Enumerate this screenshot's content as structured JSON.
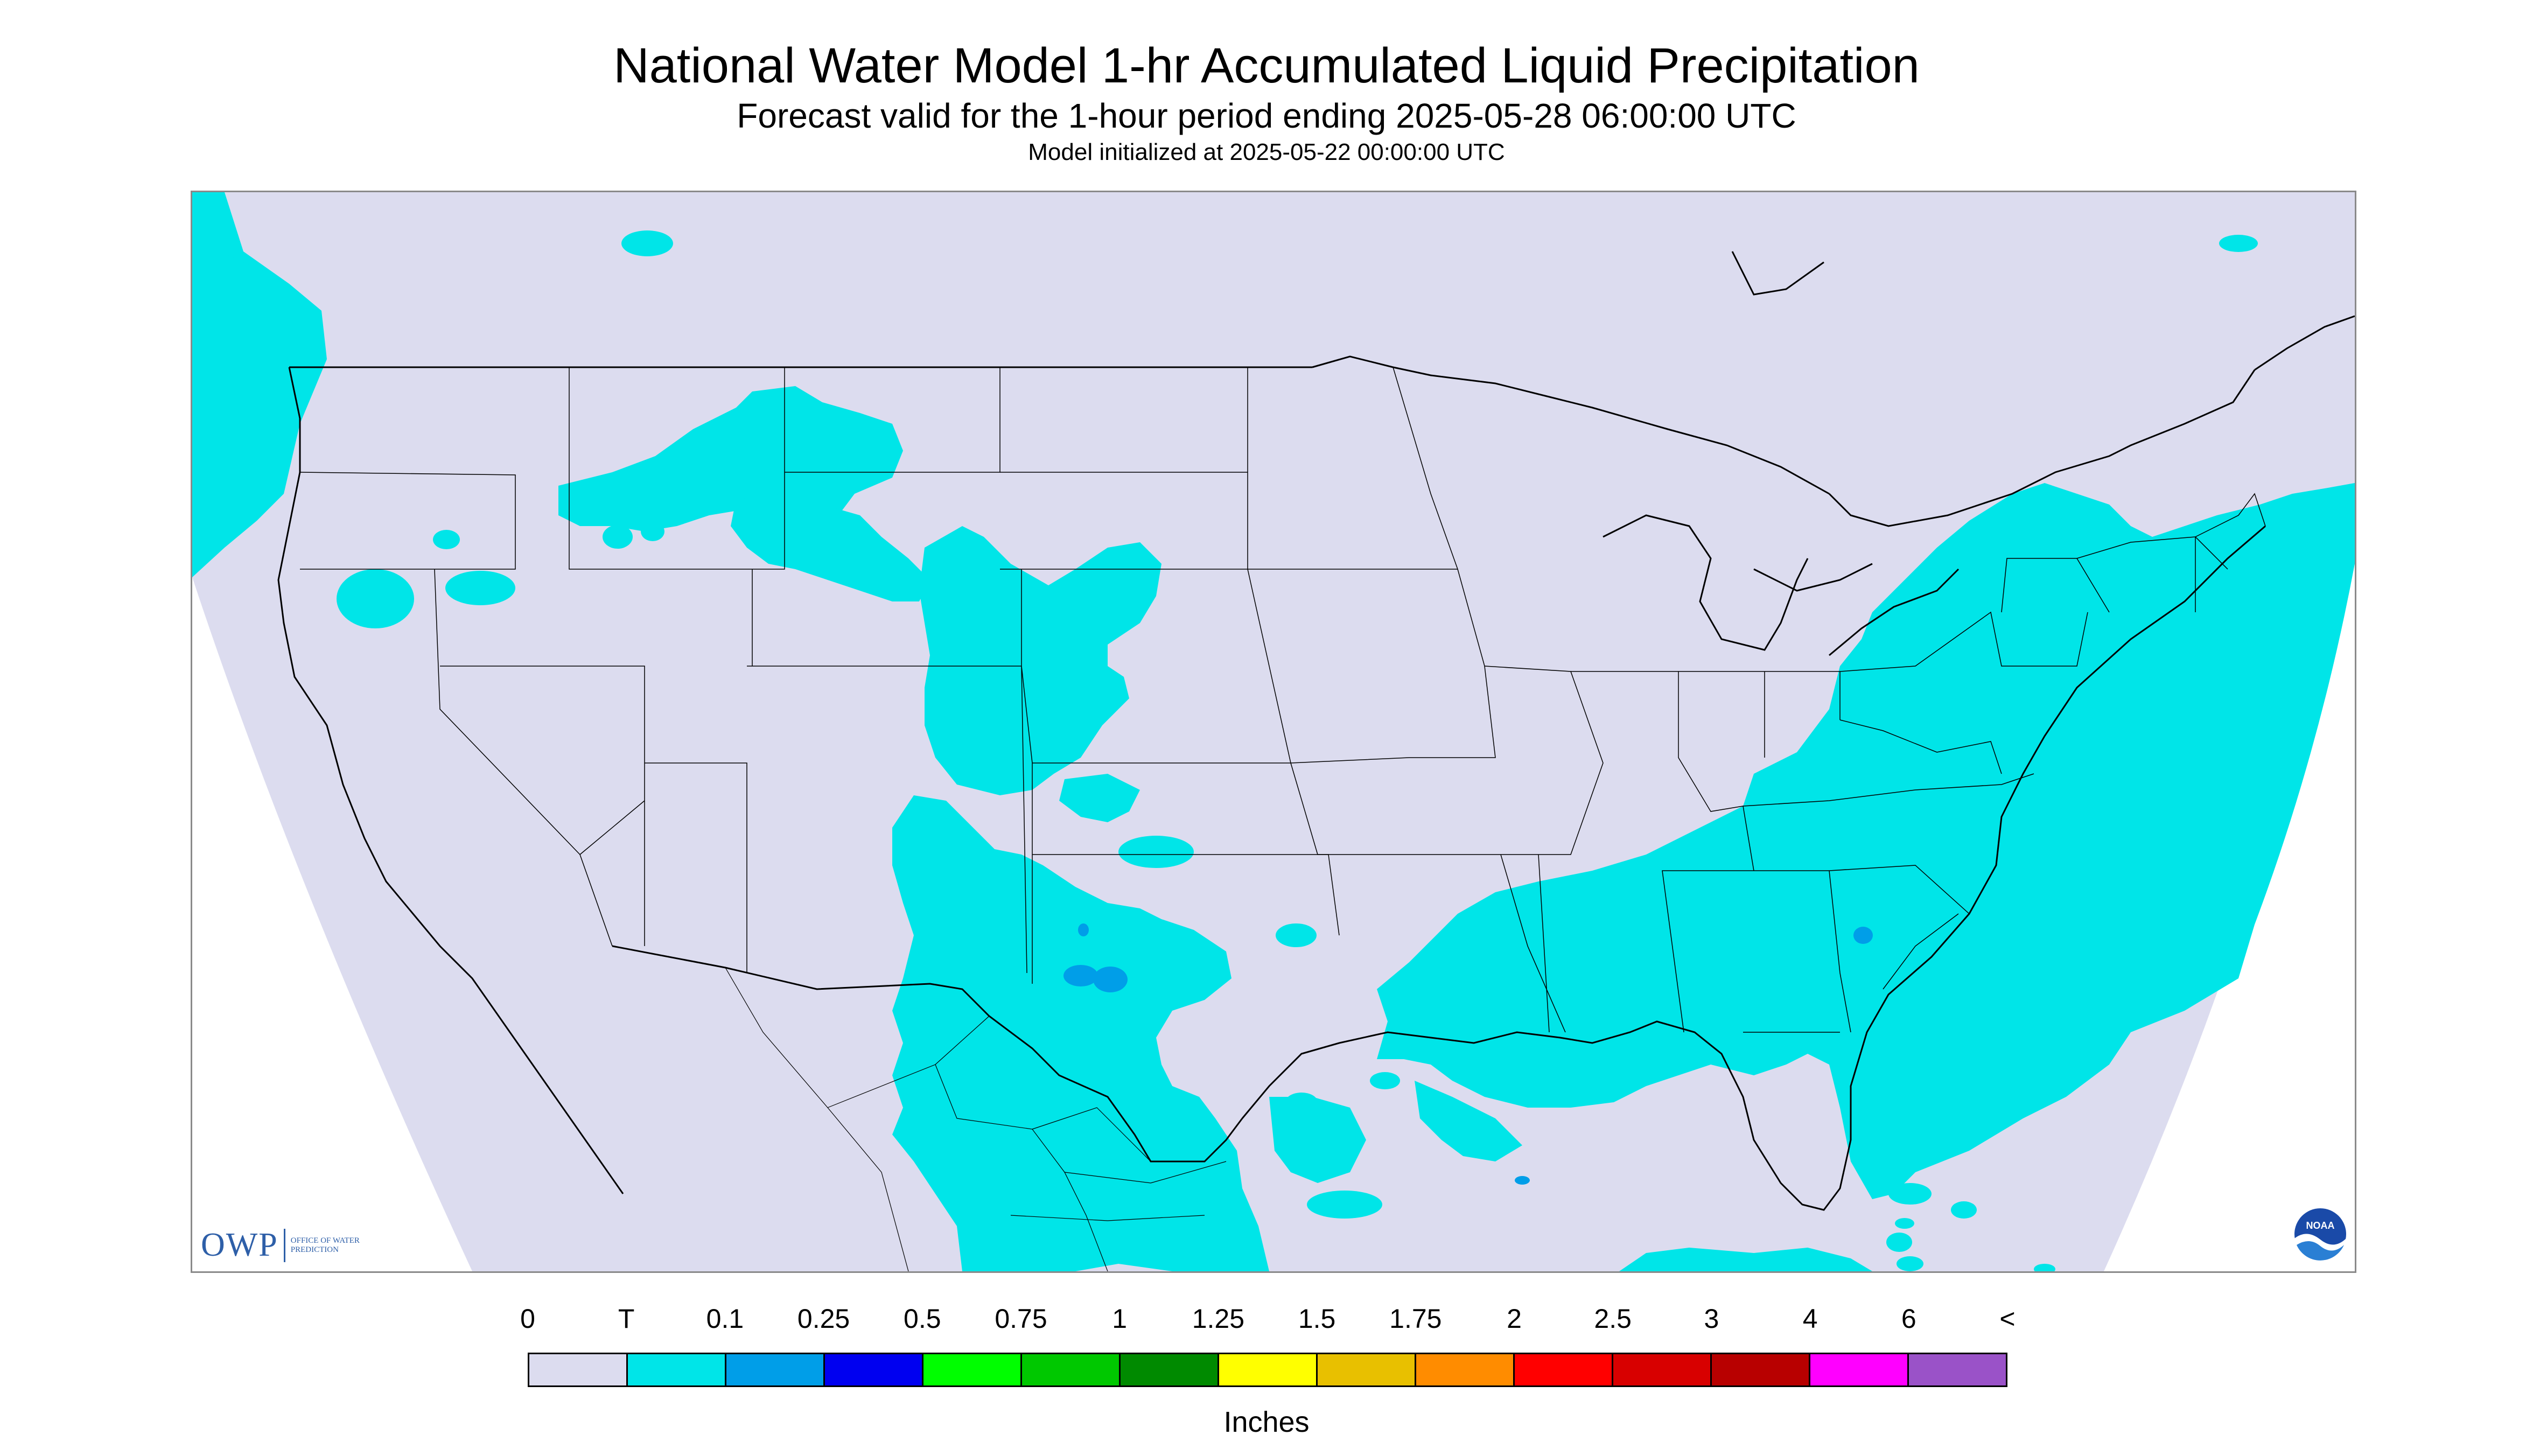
{
  "title": "National Water Model 1-hr Accumulated Liquid Precipitation",
  "subtitle": "Forecast valid for the 1-hour period ending 2025-05-28 06:00:00 UTC",
  "init_text": "Model initialized at 2025-05-22 00:00:00 UTC",
  "logos": {
    "owp_letters": "OWP",
    "owp_subtext": "OFFICE OF WATER PREDICTION",
    "noaa_text": "NOAA"
  },
  "legend": {
    "labels": [
      "0",
      "T",
      "0.1",
      "0.25",
      "0.5",
      "0.75",
      "1",
      "1.25",
      "1.5",
      "1.75",
      "2",
      "2.5",
      "3",
      "4",
      "6",
      "<"
    ],
    "colors": [
      "#dcdcef",
      "#00e5e8",
      "#009ee8",
      "#0000f0",
      "#00fe00",
      "#00c800",
      "#008a00",
      "#ffff00",
      "#e8c000",
      "#ff8c00",
      "#ff0000",
      "#d80000",
      "#b80000",
      "#ff00ff",
      "#9a52c8"
    ],
    "units": "Inches"
  },
  "map_colors": {
    "background": "#dcdcef",
    "trace": "#00e5e8",
    "light": "#009ee8",
    "lines": "#000000"
  },
  "regions_shown": [
    "T",
    "0.1"
  ]
}
